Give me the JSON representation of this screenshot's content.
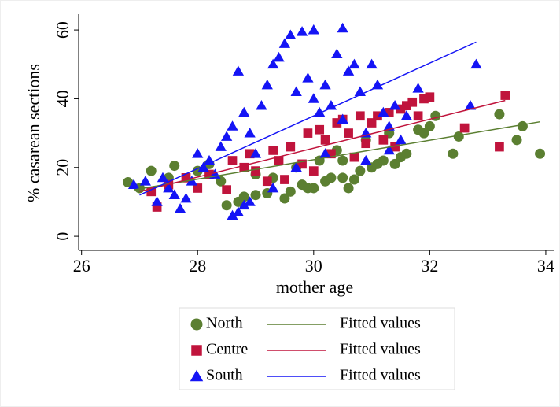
{
  "chart_data": {
    "type": "scatter",
    "x_label": "mother age",
    "y_label": "% casarean sections",
    "xlim": [
      25.95,
      34.15
    ],
    "ylim": [
      -4.1,
      64.6
    ],
    "xticks": [
      26,
      28,
      30,
      32,
      34
    ],
    "yticks": [
      0,
      20,
      40,
      60
    ],
    "grid": false,
    "series": [
      {
        "name": "North",
        "type": "scatter",
        "marker": "circle",
        "color": "#5b7f31",
        "x": [
          26.8,
          27.0,
          27.2,
          27.5,
          27.6,
          28,
          28.2,
          28.5,
          28.7,
          28.8,
          29,
          29.2,
          29.5,
          29.6,
          29.8,
          29.9,
          30,
          30.2,
          30.3,
          30.5,
          30.6,
          30.7,
          30.5,
          30.8,
          31,
          31.1,
          31.2,
          31.4,
          31.5,
          31.6,
          31.8,
          31.9,
          32,
          32.1,
          32.4,
          32.5,
          33.2,
          33.5,
          33.6,
          33.9,
          29.3,
          29.7,
          30.1,
          30.4,
          30.9,
          31.3,
          29.0,
          28.4
        ],
        "values": [
          15.7,
          14,
          19,
          17,
          20.5,
          19,
          21,
          9,
          10,
          11.5,
          12,
          12.5,
          11,
          13,
          15,
          14,
          14,
          16,
          17,
          17,
          14,
          16.5,
          22,
          19,
          20,
          21,
          22,
          21,
          23,
          24,
          31,
          30,
          32,
          35,
          24,
          29,
          35.5,
          28,
          32,
          24,
          17,
          20,
          22,
          25,
          28,
          30,
          18,
          16
        ]
      },
      {
        "name": "Centre",
        "type": "scatter",
        "marker": "square",
        "color": "#c0143c",
        "x": [
          27.3,
          27.2,
          27.5,
          27.8,
          28,
          28.2,
          28.5,
          28.6,
          28.8,
          29,
          29.2,
          29.4,
          29.5,
          29.6,
          29.8,
          29.9,
          30,
          30.1,
          30.2,
          30.3,
          30.4,
          30.5,
          30.6,
          30.8,
          30.9,
          31,
          31.1,
          31.2,
          31.3,
          31.4,
          31.5,
          31.6,
          31.7,
          31.8,
          31.9,
          32,
          32.6,
          33.2,
          33.3,
          28.9,
          29.3,
          30.7
        ],
        "values": [
          8.5,
          13,
          15,
          17,
          14,
          18,
          13.5,
          22,
          20,
          19,
          16,
          22,
          16.5,
          26,
          21,
          30,
          19,
          31,
          28,
          24,
          33,
          34,
          30,
          35,
          27,
          33,
          35,
          28,
          36,
          26,
          37,
          38,
          39,
          35,
          40,
          40.5,
          31.5,
          26,
          41,
          24,
          25,
          23
        ]
      },
      {
        "name": "South",
        "type": "scatter",
        "marker": "triangle",
        "color": "#1414f5",
        "x": [
          26.9,
          27.1,
          27.3,
          27.4,
          27.5,
          27.6,
          27.7,
          27.8,
          27.9,
          28,
          28.1,
          28.2,
          28.3,
          28.4,
          28.5,
          28.6,
          28.7,
          28.8,
          28.9,
          28.6,
          28.7,
          28.8,
          28.9,
          29,
          29.1,
          29.2,
          29.3,
          29.3,
          29.4,
          29.5,
          29.6,
          29.7,
          29.8,
          29.9,
          30,
          30,
          30.1,
          30.2,
          30.3,
          30.4,
          30.5,
          30.5,
          30.6,
          30.7,
          30.8,
          30.9,
          31,
          31.1,
          31.2,
          31.3,
          31.4,
          31.5,
          31.6,
          31.8,
          32.7,
          32.8,
          30.2,
          29.7,
          30.9,
          31.3
        ],
        "values": [
          15,
          16,
          10,
          17,
          14,
          12,
          8,
          11,
          16,
          24,
          20,
          22,
          18,
          26,
          29,
          6,
          7,
          9,
          10,
          32,
          48,
          36,
          30,
          24,
          38,
          44,
          14,
          50,
          52,
          56,
          58.5,
          42,
          59.5,
          46,
          60,
          40,
          36,
          44,
          38,
          53,
          60.5,
          34,
          48,
          50,
          42,
          30,
          50,
          44,
          36,
          32,
          38,
          28,
          35,
          43,
          38,
          50,
          24,
          20,
          22,
          25
        ]
      },
      {
        "name": "Fitted values",
        "type": "line",
        "color": "#5b7f31",
        "x": [
          26.9,
          33.9
        ],
        "values": [
          13.5,
          33.3
        ]
      },
      {
        "name": "Fitted values",
        "type": "line",
        "color": "#c0143c",
        "x": [
          27.0,
          33.3
        ],
        "values": [
          13,
          39.5
        ]
      },
      {
        "name": "Fitted values",
        "type": "line",
        "color": "#1414f5",
        "x": [
          27.0,
          32.8
        ],
        "values": [
          12,
          56.5
        ]
      }
    ]
  }
}
